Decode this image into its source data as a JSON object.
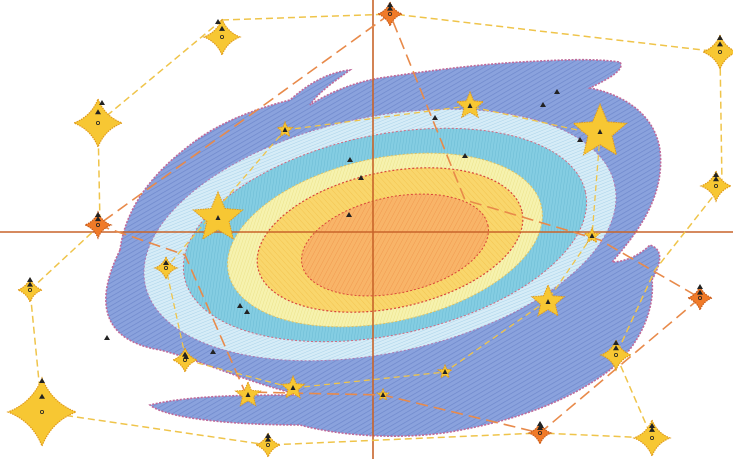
{
  "colors": {
    "background": "#ffffff",
    "galaxy_outer": "#7f97d6",
    "galaxy_outer_stroke": "#c06a9a",
    "ring_light": "#cfe8f5",
    "ring_cyan": "#7cc8df",
    "ring_pale": "#f3f0a8",
    "core_yellow": "#f8d56a",
    "core_orange": "#f6a85a",
    "axis": "#c8642a",
    "path_orange": "#e88a4a",
    "path_yellow": "#efc44a",
    "star_gold": "#f7c733",
    "star_gold_stroke": "#e09a1a",
    "star_orange": "#f07a28",
    "marker": "#222222"
  },
  "icons": {
    "four_point_star": "sparkle-star-icon",
    "five_point_star": "five-point-star-icon",
    "vertex_marker": "triangle-marker-icon"
  }
}
